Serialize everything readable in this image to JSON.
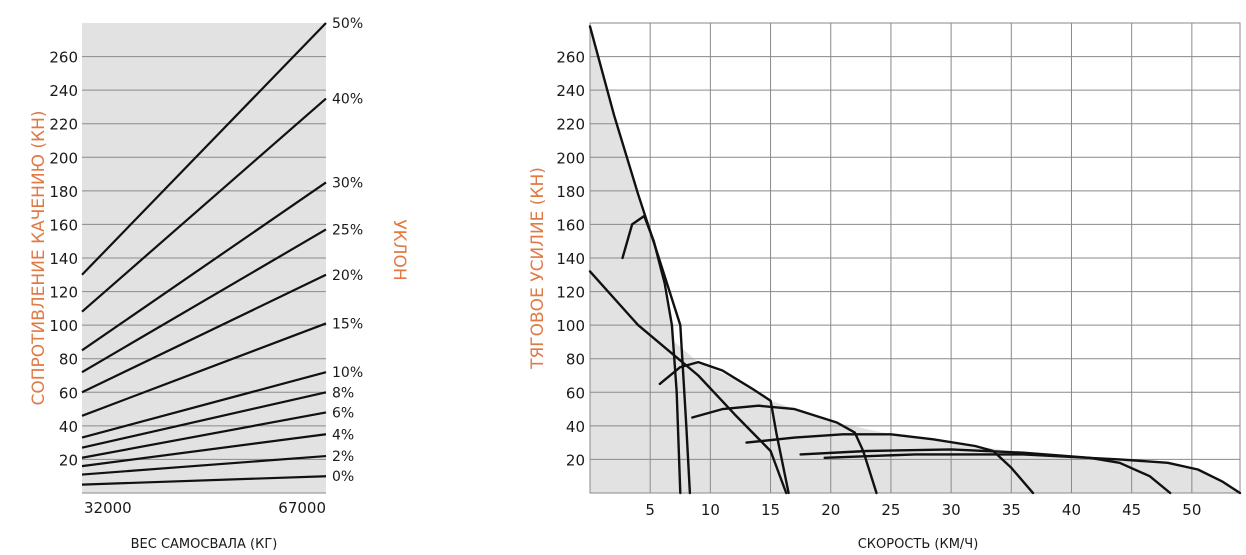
{
  "colors": {
    "accent": "#e07a45",
    "plot_fill": "#e2e2e2",
    "grid": "#8a8a8a",
    "curve": "#111111",
    "text": "#1a1a1a"
  },
  "chart_data": [
    {
      "type": "line",
      "title": "",
      "xlabel": "ВЕС САМОСВАЛА (КГ)",
      "ylabel": "СОПРОТИВЛЕНИЕ КАЧЕНИЮ (КН)",
      "y2label": "УКЛОН",
      "x_ticks": [
        "32000",
        "67000"
      ],
      "x": [
        32000,
        67000
      ],
      "xlim": [
        32000,
        67000
      ],
      "ylim": [
        0,
        280
      ],
      "y_ticks": [
        20,
        40,
        60,
        80,
        100,
        120,
        140,
        160,
        180,
        200,
        220,
        240,
        260
      ],
      "grid": "horizontal",
      "series": [
        {
          "name": "0%",
          "values": [
            5,
            10
          ]
        },
        {
          "name": "2%",
          "values": [
            11,
            22
          ]
        },
        {
          "name": "4%",
          "values": [
            16,
            35
          ]
        },
        {
          "name": "6%",
          "values": [
            21,
            48
          ]
        },
        {
          "name": "8%",
          "values": [
            27,
            60
          ]
        },
        {
          "name": "10%",
          "values": [
            33,
            72
          ]
        },
        {
          "name": "15%",
          "values": [
            46,
            101
          ]
        },
        {
          "name": "20%",
          "values": [
            60,
            130
          ]
        },
        {
          "name": "25%",
          "values": [
            72,
            157
          ]
        },
        {
          "name": "30%",
          "values": [
            85,
            185
          ]
        },
        {
          "name": "40%",
          "values": [
            108,
            235
          ]
        },
        {
          "name": "50%",
          "values": [
            130,
            280
          ]
        }
      ]
    },
    {
      "type": "line",
      "title": "",
      "xlabel": "СКОРОСТЬ (КМ/Ч)",
      "ylabel": "ТЯГОВОЕ УСИЛИЕ (КН)",
      "xlim": [
        0,
        54
      ],
      "ylim": [
        0,
        280
      ],
      "x_ticks": [
        5,
        10,
        15,
        20,
        25,
        30,
        35,
        40,
        45,
        50
      ],
      "y_ticks": [
        20,
        40,
        60,
        80,
        100,
        120,
        140,
        160,
        180,
        200,
        220,
        240,
        260
      ],
      "grid": "both",
      "series": [
        {
          "name": "",
          "x": [
            0,
            2,
            4,
            5.5,
            7.5,
            8,
            8.3
          ],
          "y": [
            278,
            225,
            178,
            145,
            100,
            40,
            0
          ]
        },
        {
          "name": "",
          "x": [
            2.7,
            3.5,
            4.5,
            5.3,
            6.2,
            6.8,
            7.2,
            7.5
          ],
          "y": [
            140,
            160,
            165,
            150,
            125,
            100,
            60,
            0
          ]
        },
        {
          "name": "",
          "x": [
            0,
            4,
            7,
            9,
            12,
            15,
            16.3
          ],
          "y": [
            132,
            100,
            82,
            70,
            47,
            25,
            0
          ]
        },
        {
          "name": "",
          "x": [
            5.8,
            7.5,
            9,
            11,
            13.5,
            15,
            15.5,
            16.5
          ],
          "y": [
            65,
            75,
            78,
            73,
            62,
            55,
            35,
            0
          ]
        },
        {
          "name": "",
          "x": [
            8.5,
            11,
            14,
            17,
            20.5,
            22,
            22.7,
            23.8
          ],
          "y": [
            45,
            50,
            52,
            50,
            42,
            36,
            25,
            0
          ]
        },
        {
          "name": "",
          "x": [
            13,
            17,
            21,
            25,
            28.5,
            32,
            33.5,
            35,
            36.8
          ],
          "y": [
            30,
            33,
            35,
            35,
            32,
            28,
            25,
            15,
            0
          ]
        },
        {
          "name": "",
          "x": [
            17.5,
            23,
            30,
            36,
            41.5,
            44,
            46.5,
            48.2
          ],
          "y": [
            23,
            25,
            26,
            24,
            21,
            18,
            10,
            0
          ]
        },
        {
          "name": "",
          "x": [
            19.5,
            27,
            36,
            44,
            48,
            50.5,
            52.5,
            54
          ],
          "y": [
            21,
            23,
            23,
            20,
            18,
            14,
            7,
            0
          ]
        }
      ]
    }
  ]
}
